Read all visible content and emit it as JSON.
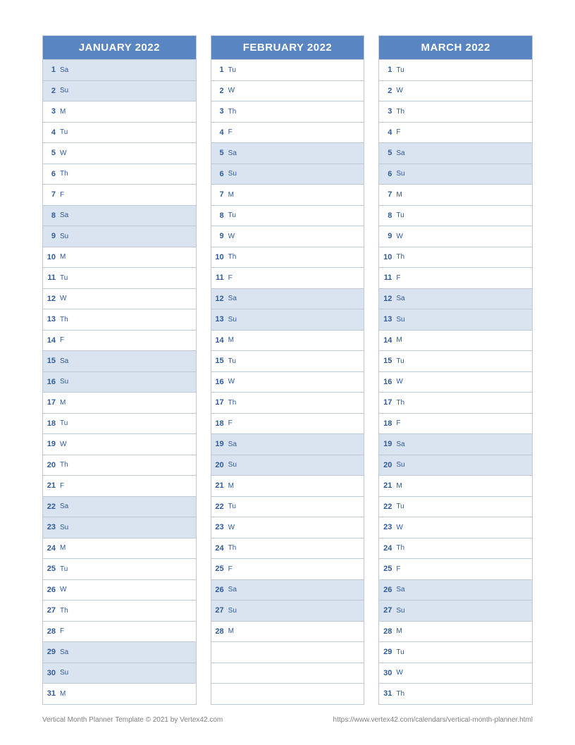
{
  "styling": {
    "header_bg": "#5986c2",
    "header_fg": "#ffffff",
    "weekend_bg": "#dae4f1",
    "border_color": "#c0c8d4",
    "text_color": "#2e5a99",
    "footer_color": "#808080",
    "header_fontsize": 15,
    "row_fontsize": 11,
    "footer_fontsize": 10,
    "row_height": 29.5,
    "column_gap": 20,
    "total_rows": 31
  },
  "months": [
    {
      "title": "JANUARY 2022",
      "days": [
        {
          "num": "1",
          "dow": "Sa",
          "weekend": true
        },
        {
          "num": "2",
          "dow": "Su",
          "weekend": true
        },
        {
          "num": "3",
          "dow": "M",
          "weekend": false
        },
        {
          "num": "4",
          "dow": "Tu",
          "weekend": false
        },
        {
          "num": "5",
          "dow": "W",
          "weekend": false
        },
        {
          "num": "6",
          "dow": "Th",
          "weekend": false
        },
        {
          "num": "7",
          "dow": "F",
          "weekend": false
        },
        {
          "num": "8",
          "dow": "Sa",
          "weekend": true
        },
        {
          "num": "9",
          "dow": "Su",
          "weekend": true
        },
        {
          "num": "10",
          "dow": "M",
          "weekend": false
        },
        {
          "num": "11",
          "dow": "Tu",
          "weekend": false
        },
        {
          "num": "12",
          "dow": "W",
          "weekend": false
        },
        {
          "num": "13",
          "dow": "Th",
          "weekend": false
        },
        {
          "num": "14",
          "dow": "F",
          "weekend": false
        },
        {
          "num": "15",
          "dow": "Sa",
          "weekend": true
        },
        {
          "num": "16",
          "dow": "Su",
          "weekend": true
        },
        {
          "num": "17",
          "dow": "M",
          "weekend": false
        },
        {
          "num": "18",
          "dow": "Tu",
          "weekend": false
        },
        {
          "num": "19",
          "dow": "W",
          "weekend": false
        },
        {
          "num": "20",
          "dow": "Th",
          "weekend": false
        },
        {
          "num": "21",
          "dow": "F",
          "weekend": false
        },
        {
          "num": "22",
          "dow": "Sa",
          "weekend": true
        },
        {
          "num": "23",
          "dow": "Su",
          "weekend": true
        },
        {
          "num": "24",
          "dow": "M",
          "weekend": false
        },
        {
          "num": "25",
          "dow": "Tu",
          "weekend": false
        },
        {
          "num": "26",
          "dow": "W",
          "weekend": false
        },
        {
          "num": "27",
          "dow": "Th",
          "weekend": false
        },
        {
          "num": "28",
          "dow": "F",
          "weekend": false
        },
        {
          "num": "29",
          "dow": "Sa",
          "weekend": true
        },
        {
          "num": "30",
          "dow": "Su",
          "weekend": true
        },
        {
          "num": "31",
          "dow": "M",
          "weekend": false
        }
      ]
    },
    {
      "title": "FEBRUARY 2022",
      "days": [
        {
          "num": "1",
          "dow": "Tu",
          "weekend": false
        },
        {
          "num": "2",
          "dow": "W",
          "weekend": false
        },
        {
          "num": "3",
          "dow": "Th",
          "weekend": false
        },
        {
          "num": "4",
          "dow": "F",
          "weekend": false
        },
        {
          "num": "5",
          "dow": "Sa",
          "weekend": true
        },
        {
          "num": "6",
          "dow": "Su",
          "weekend": true
        },
        {
          "num": "7",
          "dow": "M",
          "weekend": false
        },
        {
          "num": "8",
          "dow": "Tu",
          "weekend": false
        },
        {
          "num": "9",
          "dow": "W",
          "weekend": false
        },
        {
          "num": "10",
          "dow": "Th",
          "weekend": false
        },
        {
          "num": "11",
          "dow": "F",
          "weekend": false
        },
        {
          "num": "12",
          "dow": "Sa",
          "weekend": true
        },
        {
          "num": "13",
          "dow": "Su",
          "weekend": true
        },
        {
          "num": "14",
          "dow": "M",
          "weekend": false
        },
        {
          "num": "15",
          "dow": "Tu",
          "weekend": false
        },
        {
          "num": "16",
          "dow": "W",
          "weekend": false
        },
        {
          "num": "17",
          "dow": "Th",
          "weekend": false
        },
        {
          "num": "18",
          "dow": "F",
          "weekend": false
        },
        {
          "num": "19",
          "dow": "Sa",
          "weekend": true
        },
        {
          "num": "20",
          "dow": "Su",
          "weekend": true
        },
        {
          "num": "21",
          "dow": "M",
          "weekend": false
        },
        {
          "num": "22",
          "dow": "Tu",
          "weekend": false
        },
        {
          "num": "23",
          "dow": "W",
          "weekend": false
        },
        {
          "num": "24",
          "dow": "Th",
          "weekend": false
        },
        {
          "num": "25",
          "dow": "F",
          "weekend": false
        },
        {
          "num": "26",
          "dow": "Sa",
          "weekend": true
        },
        {
          "num": "27",
          "dow": "Su",
          "weekend": true
        },
        {
          "num": "28",
          "dow": "M",
          "weekend": false
        }
      ]
    },
    {
      "title": "MARCH 2022",
      "days": [
        {
          "num": "1",
          "dow": "Tu",
          "weekend": false
        },
        {
          "num": "2",
          "dow": "W",
          "weekend": false
        },
        {
          "num": "3",
          "dow": "Th",
          "weekend": false
        },
        {
          "num": "4",
          "dow": "F",
          "weekend": false
        },
        {
          "num": "5",
          "dow": "Sa",
          "weekend": true
        },
        {
          "num": "6",
          "dow": "Su",
          "weekend": true
        },
        {
          "num": "7",
          "dow": "M",
          "weekend": false
        },
        {
          "num": "8",
          "dow": "Tu",
          "weekend": false
        },
        {
          "num": "9",
          "dow": "W",
          "weekend": false
        },
        {
          "num": "10",
          "dow": "Th",
          "weekend": false
        },
        {
          "num": "11",
          "dow": "F",
          "weekend": false
        },
        {
          "num": "12",
          "dow": "Sa",
          "weekend": true
        },
        {
          "num": "13",
          "dow": "Su",
          "weekend": true
        },
        {
          "num": "14",
          "dow": "M",
          "weekend": false
        },
        {
          "num": "15",
          "dow": "Tu",
          "weekend": false
        },
        {
          "num": "16",
          "dow": "W",
          "weekend": false
        },
        {
          "num": "17",
          "dow": "Th",
          "weekend": false
        },
        {
          "num": "18",
          "dow": "F",
          "weekend": false
        },
        {
          "num": "19",
          "dow": "Sa",
          "weekend": true
        },
        {
          "num": "20",
          "dow": "Su",
          "weekend": true
        },
        {
          "num": "21",
          "dow": "M",
          "weekend": false
        },
        {
          "num": "22",
          "dow": "Tu",
          "weekend": false
        },
        {
          "num": "23",
          "dow": "W",
          "weekend": false
        },
        {
          "num": "24",
          "dow": "Th",
          "weekend": false
        },
        {
          "num": "25",
          "dow": "F",
          "weekend": false
        },
        {
          "num": "26",
          "dow": "Sa",
          "weekend": true
        },
        {
          "num": "27",
          "dow": "Su",
          "weekend": true
        },
        {
          "num": "28",
          "dow": "M",
          "weekend": false
        },
        {
          "num": "29",
          "dow": "Tu",
          "weekend": false
        },
        {
          "num": "30",
          "dow": "W",
          "weekend": false
        },
        {
          "num": "31",
          "dow": "Th",
          "weekend": false
        }
      ]
    }
  ],
  "footer": {
    "left": "Vertical Month Planner Template © 2021 by Vertex42.com",
    "right": "https://www.vertex42.com/calendars/vertical-month-planner.html"
  }
}
